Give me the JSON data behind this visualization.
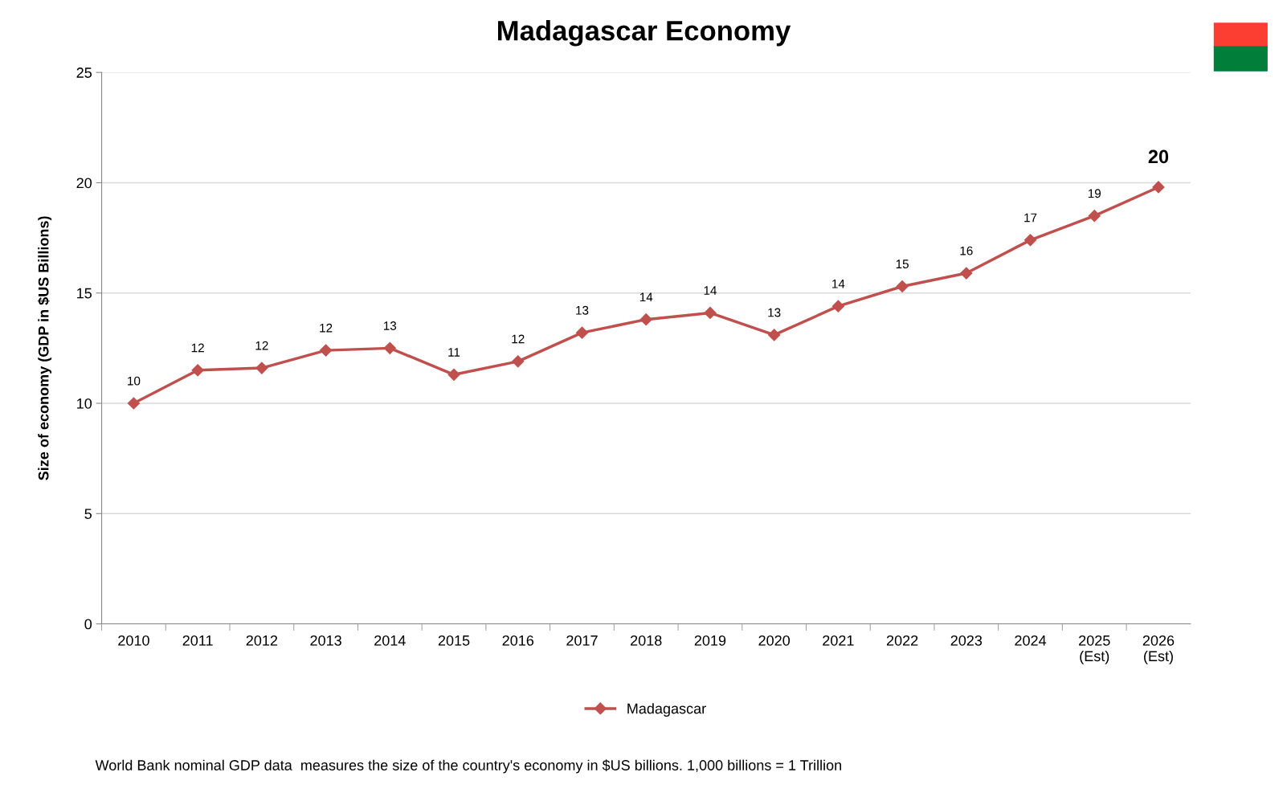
{
  "chart_data": {
    "type": "line",
    "title": "Madagascar Economy",
    "ylabel": "Size of economy (GDP in $US Billions)",
    "categories": [
      "2010",
      "2011",
      "2012",
      "2013",
      "2014",
      "2015",
      "2016",
      "2017",
      "2018",
      "2019",
      "2020",
      "2021",
      "2022",
      "2023",
      "2024",
      "2025\n(Est)",
      "2026\n(Est)"
    ],
    "series": [
      {
        "name": "Madagascar",
        "color": "#c0504d",
        "values": [
          10.0,
          11.5,
          11.6,
          12.4,
          12.5,
          11.3,
          11.9,
          13.2,
          13.8,
          14.1,
          13.1,
          14.4,
          15.3,
          15.9,
          17.4,
          18.5,
          19.8
        ],
        "value_labels": [
          "10",
          "12",
          "12",
          "12",
          "13",
          "11",
          "12",
          "13",
          "14",
          "14",
          "13",
          "14",
          "15",
          "16",
          "17",
          "19",
          "20"
        ]
      }
    ],
    "ylim": [
      0,
      25
    ],
    "yticks": [
      0,
      5,
      10,
      15,
      20,
      25
    ],
    "grid": "y",
    "legend": "bottom",
    "marker": "diamond",
    "line_style": "solid",
    "annotations": [
      "World Bank nominal GDP data  measures the size of the country's economy in $US billions. 1,000 billions = 1 Trillion"
    ]
  }
}
